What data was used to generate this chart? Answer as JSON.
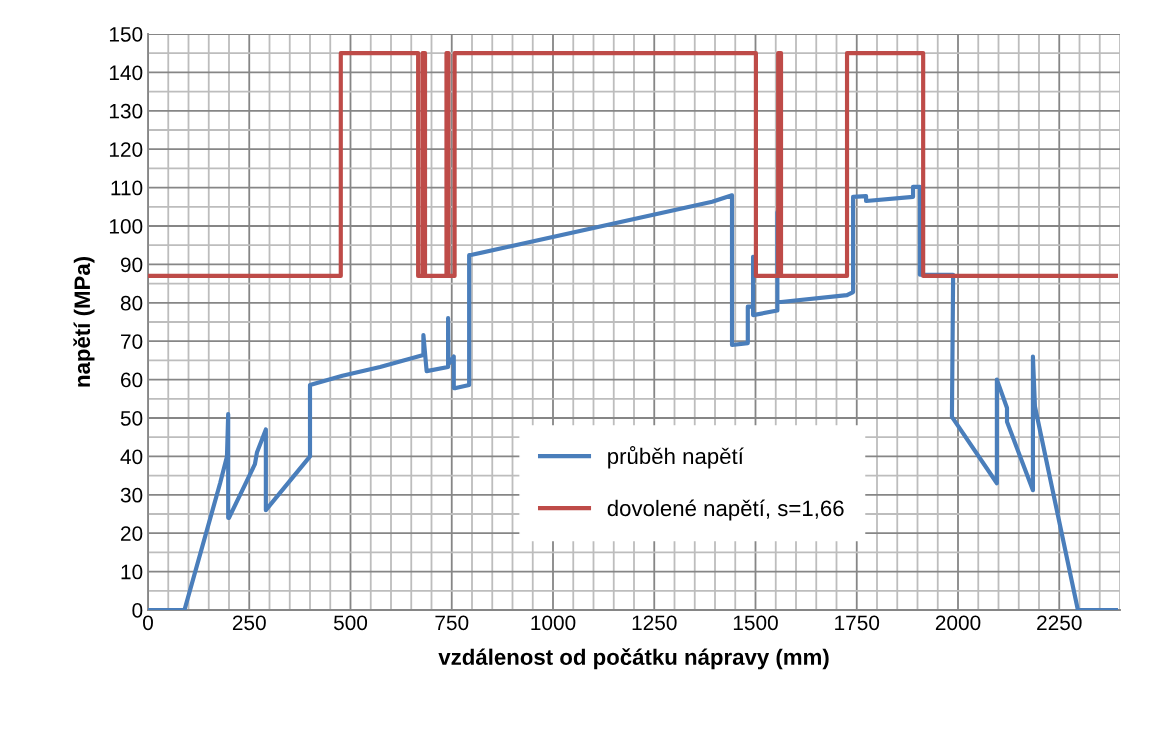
{
  "chart_data": {
    "type": "line",
    "xlabel": "vzdálenost od počátku nápravy (mm)",
    "ylabel": "napětí (MPa)",
    "xlim": [
      0,
      2400
    ],
    "xticks": [
      0,
      250,
      500,
      750,
      1000,
      1250,
      1500,
      1750,
      2000,
      2250
    ],
    "ylim": [
      0,
      150
    ],
    "yticks": [
      0,
      10,
      20,
      30,
      40,
      50,
      60,
      70,
      80,
      90,
      100,
      110,
      120,
      130,
      140,
      150
    ],
    "grid": true,
    "legend": "bottom",
    "marker": "none",
    "line_style": "solid",
    "series": [
      {
        "name": "průběh napětí",
        "color": "#4a7ebb",
        "x": [
          0,
          90,
          178,
          195,
          198,
          198,
          200,
          264,
          269,
          291,
          291,
          400,
          400,
          480,
          573,
          680,
          680,
          688,
          741,
          741,
          742,
          755,
          755,
          760,
          793,
          793,
          800,
          1393,
          1442,
          1442,
          1481,
          1481,
          1494,
          1494,
          1494,
          1554,
          1554,
          1554,
          1563,
          1726,
          1741,
          1741,
          1773,
          1773,
          1889,
          1889,
          1906,
          1906,
          1988,
          1985,
          2096,
          2096,
          2121,
          2121,
          2185,
          2185,
          2190,
          2296,
          2390
        ],
        "values": [
          0,
          0,
          33,
          40,
          51,
          24,
          24,
          38,
          41,
          47,
          26,
          40,
          58.6,
          61,
          63.3,
          66.4,
          71.6,
          62.2,
          63.3,
          76,
          64,
          66,
          57.8,
          57.8,
          58.6,
          92.4,
          92.5,
          106.3,
          108,
          69,
          69.5,
          79,
          79,
          92,
          76.8,
          78,
          103.6,
          80.2,
          80.2,
          82,
          82.8,
          107.6,
          107.8,
          106.5,
          107.6,
          110.2,
          110.2,
          87.3,
          87.3,
          50.3,
          33,
          60,
          52.6,
          49,
          31.2,
          66,
          53,
          0,
          0
        ]
      },
      {
        "name": "dovolené napětí, s=1,66",
        "color": "#be4b48",
        "x": [
          0,
          476,
          476,
          667,
          667,
          678,
          678,
          684,
          684,
          737,
          737,
          742,
          742,
          757,
          757,
          1501,
          1501,
          1556,
          1556,
          1563,
          1563,
          1726,
          1726,
          1914,
          1914,
          2390
        ],
        "values": [
          87,
          87,
          145,
          145,
          87,
          87,
          145,
          145,
          87,
          87,
          145,
          145,
          87,
          87,
          145,
          145,
          87,
          87,
          145,
          145,
          87,
          87,
          145,
          145,
          87,
          87
        ]
      }
    ]
  }
}
